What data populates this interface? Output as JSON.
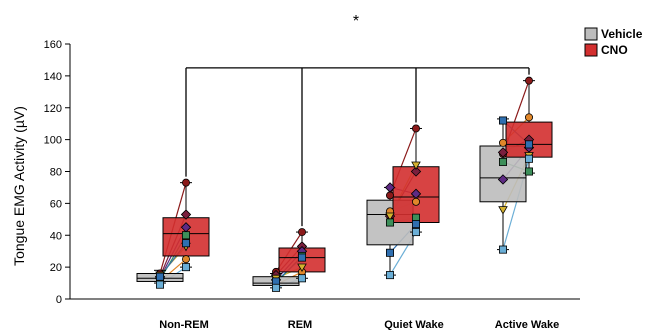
{
  "chart_data": {
    "type": "box",
    "ylabel": "Tongue EMG Activity (µV)",
    "ylim": [
      0,
      160
    ],
    "yticks": [
      0,
      20,
      40,
      60,
      80,
      100,
      120,
      140,
      160
    ],
    "categories": [
      "Non-REM",
      "REM",
      "Quiet Wake",
      "Active Wake"
    ],
    "significance_label": "*",
    "legend_position": "top-right",
    "series": [
      {
        "name": "Vehicle",
        "color": "#bdbdbd",
        "boxes": [
          {
            "whisker_low": 10,
            "q1": 11,
            "median": 13,
            "q3": 16,
            "whisker_high": 18
          },
          {
            "whisker_low": 7,
            "q1": 8.5,
            "median": 10,
            "q3": 14,
            "whisker_high": 16
          },
          {
            "whisker_low": 15,
            "q1": 34,
            "median": 53,
            "q3": 62,
            "whisker_high": 70
          },
          {
            "whisker_low": 31,
            "q1": 61,
            "median": 76,
            "q3": 96,
            "whisker_high": 113
          }
        ]
      },
      {
        "name": "CNO",
        "color": "#d32f2f",
        "boxes": [
          {
            "whisker_low": 20,
            "q1": 27,
            "median": 41,
            "q3": 51,
            "whisker_high": 73
          },
          {
            "whisker_low": 13,
            "q1": 17,
            "median": 26,
            "q3": 32,
            "whisker_high": 42
          },
          {
            "whisker_low": 42,
            "q1": 48,
            "median": 64,
            "q3": 83,
            "whisker_high": 107
          },
          {
            "whisker_low": 79,
            "q1": 89,
            "median": 97,
            "q3": 111,
            "whisker_high": 137
          }
        ]
      }
    ],
    "subjects": [
      {
        "color": "#8b1a1a",
        "marker": "circle",
        "vehicle": [
          16,
          17,
          65,
          91
        ],
        "cno": [
          73,
          42,
          107,
          137
        ]
      },
      {
        "color": "#7a1f3d",
        "marker": "diamond",
        "vehicle": [
          14,
          15,
          52,
          92
        ],
        "cno": [
          53,
          33,
          80,
          100
        ]
      },
      {
        "color": "#5e2a84",
        "marker": "diamond",
        "vehicle": [
          13,
          12,
          70,
          75
        ],
        "cno": [
          45,
          30,
          66,
          95
        ]
      },
      {
        "color": "#e0872a",
        "marker": "circle",
        "vehicle": [
          11,
          9,
          55,
          98
        ],
        "cno": [
          25,
          17,
          61,
          114
        ]
      },
      {
        "color": "#d4b12f",
        "marker": "triangle",
        "vehicle": [
          15,
          13,
          52,
          56
        ],
        "cno": [
          33,
          20,
          84,
          90
        ]
      },
      {
        "color": "#3d8f5a",
        "marker": "square",
        "vehicle": [
          12,
          10,
          48,
          86
        ],
        "cno": [
          40,
          27,
          51,
          80
        ]
      },
      {
        "color": "#2f6fb0",
        "marker": "square",
        "vehicle": [
          14,
          11,
          29,
          112
        ],
        "cno": [
          35,
          26,
          47,
          97
        ]
      },
      {
        "color": "#6aaed6",
        "marker": "square",
        "vehicle": [
          9,
          7,
          15,
          31
        ],
        "cno": [
          20,
          13,
          42,
          88
        ]
      }
    ]
  }
}
